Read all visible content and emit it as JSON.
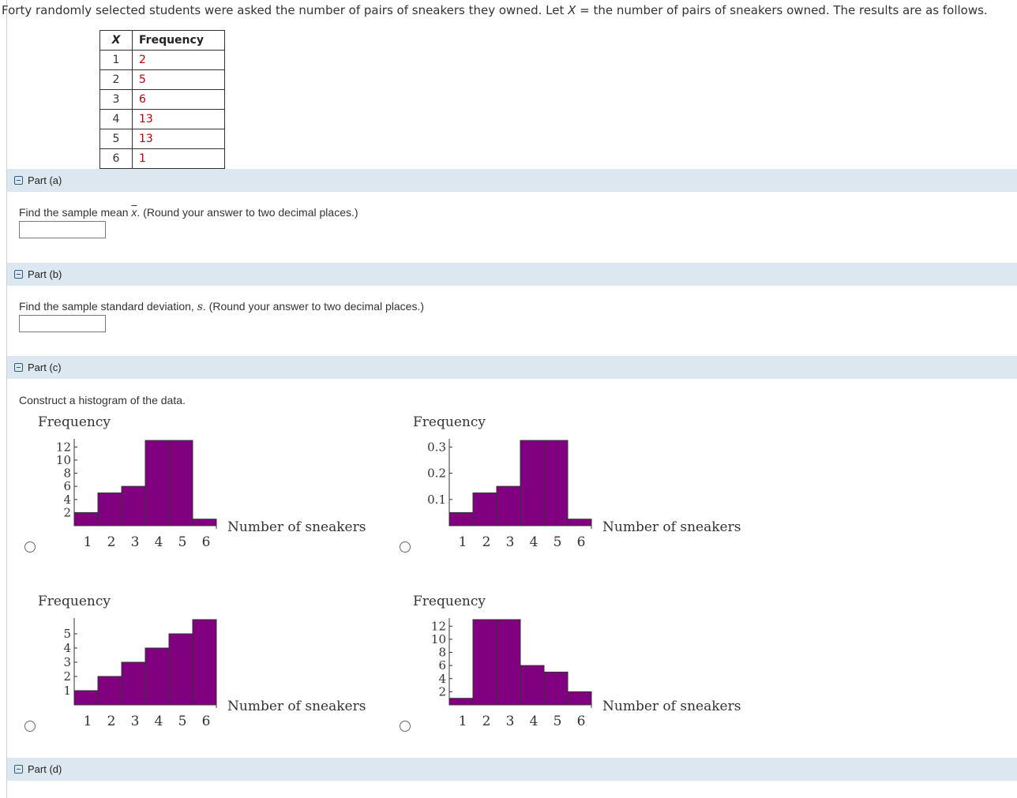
{
  "intro": {
    "pre": "Forty randomly selected students were asked the number of pairs of sneakers they owned. Let ",
    "var": "X",
    "post": " = the number of pairs of sneakers owned. The results are as follows."
  },
  "table": {
    "header_x": "X",
    "header_f": "Frequency",
    "rows": [
      {
        "x": "1",
        "f": "2"
      },
      {
        "x": "2",
        "f": "5"
      },
      {
        "x": "3",
        "f": "6"
      },
      {
        "x": "4",
        "f": "13"
      },
      {
        "x": "5",
        "f": "13"
      },
      {
        "x": "6",
        "f": "1"
      }
    ]
  },
  "parts": {
    "a": {
      "label": "Part (a)",
      "q_pre": "Find the sample mean ",
      "q_sym": "x",
      "q_post": ". (Round your answer to two decimal places.)",
      "answer": ""
    },
    "b": {
      "label": "Part (b)",
      "q_pre": "Find the sample standard deviation, ",
      "q_sym": "s",
      "q_post": ". (Round your answer to two decimal places.)",
      "answer": ""
    },
    "c": {
      "label": "Part (c)",
      "q": "Construct a histogram of the data."
    },
    "d": {
      "label": "Part (d)"
    }
  },
  "colors": {
    "bar_fill": "#800080",
    "part_bar_bg": "#dde7f0",
    "freq_value": "#c00000"
  },
  "chart_data": [
    {
      "type": "bar",
      "ylabel": "Frequency",
      "xlabel": "Number of sneakers",
      "categories": [
        "1",
        "2",
        "3",
        "4",
        "5",
        "6"
      ],
      "values": [
        2,
        5,
        6,
        13,
        13,
        1
      ],
      "yticks": [
        "2",
        "4",
        "6",
        "8",
        "10",
        "12"
      ],
      "ytick_values": [
        2,
        4,
        6,
        8,
        10,
        12
      ],
      "ylim": [
        0,
        13
      ]
    },
    {
      "type": "bar",
      "ylabel": "Frequency",
      "xlabel": "Number of sneakers",
      "categories": [
        "1",
        "2",
        "3",
        "4",
        "5",
        "6"
      ],
      "values": [
        0.05,
        0.125,
        0.15,
        0.325,
        0.325,
        0.025
      ],
      "yticks": [
        "0.1",
        "0.2",
        "0.3"
      ],
      "ytick_values": [
        0.1,
        0.2,
        0.3
      ],
      "ylim": [
        0,
        0.325
      ]
    },
    {
      "type": "bar",
      "ylabel": "Frequency",
      "xlabel": "Number of sneakers",
      "categories": [
        "1",
        "2",
        "3",
        "4",
        "5",
        "6"
      ],
      "values": [
        1,
        2,
        3,
        4,
        5,
        6
      ],
      "yticks": [
        "1",
        "2",
        "3",
        "4",
        "5"
      ],
      "ytick_values": [
        1,
        2,
        3,
        4,
        5
      ],
      "ylim": [
        0,
        6
      ]
    },
    {
      "type": "bar",
      "ylabel": "Frequency",
      "xlabel": "Number of sneakers",
      "categories": [
        "1",
        "2",
        "3",
        "4",
        "5",
        "6"
      ],
      "values": [
        1,
        13,
        13,
        6,
        5,
        2
      ],
      "yticks": [
        "2",
        "4",
        "6",
        "8",
        "10",
        "12"
      ],
      "ytick_values": [
        2,
        4,
        6,
        8,
        10,
        12
      ],
      "ylim": [
        0,
        13
      ]
    }
  ]
}
